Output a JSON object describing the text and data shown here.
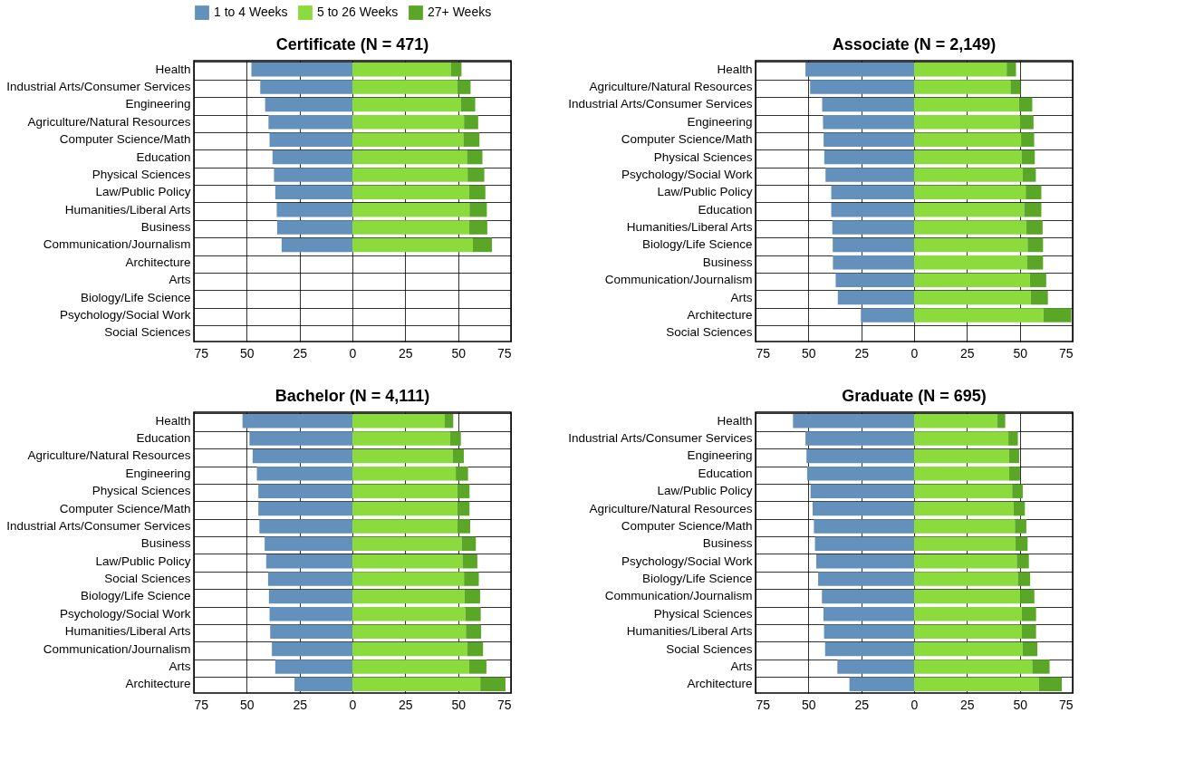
{
  "chart_data": [
    {
      "type": "bar",
      "orientation": "horizontal",
      "stacked": true,
      "title": "Certificate (N = 471)",
      "legend": "top",
      "grid": true,
      "xlim": [
        -75,
        75
      ],
      "xticks": [
        {
          "value": -75,
          "label": "75"
        },
        {
          "value": -50,
          "label": "50"
        },
        {
          "value": -25,
          "label": "25"
        },
        0,
        25,
        50,
        75
      ],
      "categories": [
        "Health",
        "Industrial Arts/Consumer Services",
        "Engineering",
        "Agriculture/Natural Resources",
        "Computer Science/Math",
        "Education",
        "Physical Sciences",
        "Law/Public Policy",
        "Humanities/Liberal Arts",
        "Business",
        "Communication/Journalism",
        "Architecture",
        "Arts",
        "Biology/Life Science",
        "Psychology/Social Work",
        "Social Sciences"
      ],
      "series": [
        {
          "name": "1 to 4 Weeks",
          "color": "#6391bb",
          "values": [
            -47.8,
            -43.6,
            -41.3,
            -39.7,
            -39.2,
            -37.8,
            -37.1,
            -36.5,
            -35.8,
            -35.6,
            -33.5,
            null,
            null,
            null,
            null,
            null
          ]
        },
        {
          "name": "5 to 26 Weeks",
          "color": "#8cdb3c",
          "values": [
            46.5,
            49.6,
            51.3,
            52.8,
            52.5,
            54.2,
            54.5,
            55.2,
            55.4,
            55.3,
            57,
            null,
            null,
            null,
            null,
            null
          ]
        },
        {
          "name": "27+ Weeks",
          "color": "#5aa626",
          "values": [
            5.1,
            6.3,
            6.8,
            6.7,
            7.6,
            7.3,
            7.9,
            7.7,
            8.2,
            8.5,
            9,
            null,
            null,
            null,
            null,
            null
          ]
        }
      ]
    },
    {
      "type": "bar",
      "orientation": "horizontal",
      "stacked": true,
      "title": "Associate (N = 2,149)",
      "grid": true,
      "xlim": [
        -75,
        75
      ],
      "xticks": [
        {
          "value": -75,
          "label": "75"
        },
        {
          "value": -50,
          "label": "50"
        },
        {
          "value": -25,
          "label": "25"
        },
        0,
        25,
        50,
        75
      ],
      "categories": [
        "Health",
        "Agriculture/Natural Resources",
        "Industrial Arts/Consumer Services",
        "Engineering",
        "Computer Science/Math",
        "Physical Sciences",
        "Psychology/Social Work",
        "Law/Public Policy",
        "Education",
        "Humanities/Liberal Arts",
        "Biology/Life Science",
        "Business",
        "Communication/Journalism",
        "Arts",
        "Architecture",
        "Social Sciences"
      ],
      "series": [
        {
          "name": "1 to 4 Weeks",
          "color": "#6391bb",
          "values": [
            -51.4,
            -49.2,
            -43.5,
            -43.1,
            -42.8,
            -42.5,
            -41.9,
            -39.2,
            -39.2,
            -38.7,
            -38.5,
            -38.4,
            -37.1,
            -36.1,
            -25.2,
            null
          ]
        },
        {
          "name": "5 to 26 Weeks",
          "color": "#8cdb3c",
          "values": [
            43.8,
            45.6,
            49.6,
            50,
            50.6,
            50.8,
            51.4,
            52.8,
            52.1,
            53.1,
            53.7,
            53.4,
            54.8,
            55.2,
            61.2,
            null
          ]
        },
        {
          "name": "27+ Weeks",
          "color": "#5aa626",
          "values": [
            4.4,
            4.7,
            6.3,
            6.5,
            6.2,
            6.3,
            6.2,
            7.4,
            8.1,
            7.7,
            7.3,
            7.6,
            7.7,
            8.1,
            13.2,
            null
          ]
        }
      ]
    },
    {
      "type": "bar",
      "orientation": "horizontal",
      "stacked": true,
      "title": "Bachelor (N = 4,111)",
      "grid": true,
      "xlim": [
        -75,
        75
      ],
      "xticks": [
        {
          "value": -75,
          "label": "75"
        },
        {
          "value": -50,
          "label": "50"
        },
        {
          "value": -25,
          "label": "25"
        },
        0,
        25,
        50,
        75
      ],
      "categories": [
        "Health",
        "Education",
        "Agriculture/Natural Resources",
        "Engineering",
        "Physical Sciences",
        "Computer Science/Math",
        "Industrial Arts/Consumer Services",
        "Business",
        "Law/Public Policy",
        "Social Sciences",
        "Biology/Life Science",
        "Psychology/Social Work",
        "Humanities/Liberal Arts",
        "Communication/Journalism",
        "Arts",
        "Architecture"
      ],
      "series": [
        {
          "name": "1 to 4 Weeks",
          "color": "#6391bb",
          "values": [
            -52,
            -48.7,
            -47.2,
            -45.2,
            -44.5,
            -44.5,
            -44,
            -41.5,
            -40.8,
            -39.9,
            -39.5,
            -39.2,
            -38.9,
            -38.1,
            -36.5,
            -27.4
          ]
        },
        {
          "name": "5 to 26 Weeks",
          "color": "#8cdb3c",
          "values": [
            43.5,
            46.2,
            47.4,
            48.9,
            49.6,
            49.6,
            49.7,
            51.7,
            52.1,
            52.8,
            53.1,
            53.4,
            53.7,
            54.3,
            55.3,
            60.5
          ]
        },
        {
          "name": "27+ Weeks",
          "color": "#5aa626",
          "values": [
            4.2,
            5.1,
            5.3,
            5.8,
            5.8,
            5.8,
            6,
            6.7,
            7,
            7,
            7.3,
            7.3,
            7.2,
            7.5,
            8.1,
            11.9
          ]
        }
      ]
    },
    {
      "type": "bar",
      "orientation": "horizontal",
      "stacked": true,
      "title": "Graduate (N = 695)",
      "grid": true,
      "xlim": [
        -75,
        75
      ],
      "xticks": [
        {
          "value": -75,
          "label": "75"
        },
        {
          "value": -50,
          "label": "50"
        },
        {
          "value": -25,
          "label": "25"
        },
        0,
        25,
        50,
        75
      ],
      "categories": [
        "Health",
        "Industrial Arts/Consumer Services",
        "Engineering",
        "Education",
        "Law/Public Policy",
        "Agriculture/Natural Resources",
        "Computer Science/Math",
        "Business",
        "Psychology/Social Work",
        "Biology/Life Science",
        "Communication/Journalism",
        "Physical Sciences",
        "Humanities/Liberal Arts",
        "Social Sciences",
        "Arts",
        "Architecture"
      ],
      "series": [
        {
          "name": "1 to 4 Weeks",
          "color": "#6391bb",
          "values": [
            -57.3,
            -51.4,
            -50.9,
            -50.6,
            -49,
            -48,
            -47.4,
            -46.9,
            -46.3,
            -45.4,
            -43.6,
            -42.9,
            -42.6,
            -42.1,
            -36.3,
            -30.6
          ]
        },
        {
          "name": "5 to 26 Weeks",
          "color": "#8cdb3c",
          "values": [
            39.3,
            44.6,
            44.9,
            45,
            46.4,
            47.1,
            47.7,
            48,
            48.6,
            49.1,
            50.3,
            51,
            51,
            51.3,
            55.9,
            59
          ]
        },
        {
          "name": "27+ Weeks",
          "color": "#5aa626",
          "values": [
            3.8,
            4.5,
            4.8,
            5.1,
            5,
            5.3,
            5.4,
            5.7,
            5.7,
            5.8,
            6.6,
            6.7,
            6.7,
            7,
            8.2,
            10.9
          ]
        }
      ]
    }
  ]
}
